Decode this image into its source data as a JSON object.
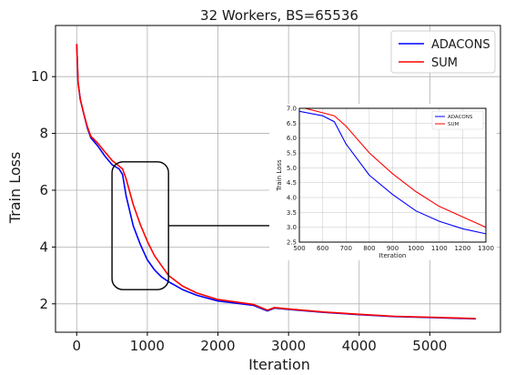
{
  "chart_data": {
    "type": "line",
    "title": "32 Workers, BS=65536",
    "xlabel": "Iteration",
    "ylabel": "Train Loss",
    "xlim": [
      -300,
      6000
    ],
    "ylim": [
      1.0,
      11.8
    ],
    "xticks": [
      0,
      1000,
      2000,
      3000,
      4000,
      5000
    ],
    "yticks": [
      2,
      4,
      6,
      8,
      10
    ],
    "grid": true,
    "legend_position": "top-right",
    "colors": {
      "ADACONS": "#0000ff",
      "SUM": "#ff0000"
    },
    "series": [
      {
        "name": "ADACONS",
        "x": [
          0,
          20,
          50,
          100,
          150,
          200,
          300,
          400,
          500,
          600,
          650,
          700,
          800,
          900,
          1000,
          1100,
          1200,
          1300,
          1500,
          1700,
          2000,
          2500,
          2700,
          2800,
          3000,
          3500,
          4000,
          4500,
          5000,
          5650
        ],
        "y": [
          11.15,
          9.8,
          9.2,
          8.7,
          8.2,
          7.85,
          7.55,
          7.2,
          6.9,
          6.75,
          6.55,
          5.8,
          4.75,
          4.1,
          3.55,
          3.2,
          2.95,
          2.78,
          2.5,
          2.3,
          2.1,
          1.95,
          1.75,
          1.85,
          1.8,
          1.7,
          1.62,
          1.55,
          1.52,
          1.47
        ]
      },
      {
        "name": "SUM",
        "x": [
          0,
          20,
          50,
          100,
          150,
          200,
          300,
          400,
          500,
          600,
          650,
          700,
          800,
          900,
          1000,
          1100,
          1200,
          1300,
          1500,
          1700,
          2000,
          2500,
          2700,
          2800,
          3000,
          3500,
          4000,
          4500,
          5000,
          5650
        ],
        "y": [
          11.15,
          9.8,
          9.2,
          8.7,
          8.25,
          7.9,
          7.65,
          7.35,
          7.05,
          6.85,
          6.75,
          6.4,
          5.5,
          4.8,
          4.2,
          3.7,
          3.35,
          3.0,
          2.62,
          2.38,
          2.15,
          1.98,
          1.78,
          1.87,
          1.82,
          1.71,
          1.63,
          1.56,
          1.53,
          1.48
        ]
      }
    ],
    "inset": {
      "xlabel": "Iteration",
      "ylabel": "Train Loss",
      "xlim": [
        500,
        1300
      ],
      "ylim": [
        2.5,
        7.0
      ],
      "xticks": [
        500,
        600,
        700,
        800,
        900,
        1000,
        1100,
        1200,
        1300
      ],
      "yticks": [
        2.5,
        3.0,
        3.5,
        4.0,
        4.5,
        5.0,
        5.5,
        6.0,
        6.5,
        7.0
      ],
      "legend_position": "top-right"
    }
  }
}
